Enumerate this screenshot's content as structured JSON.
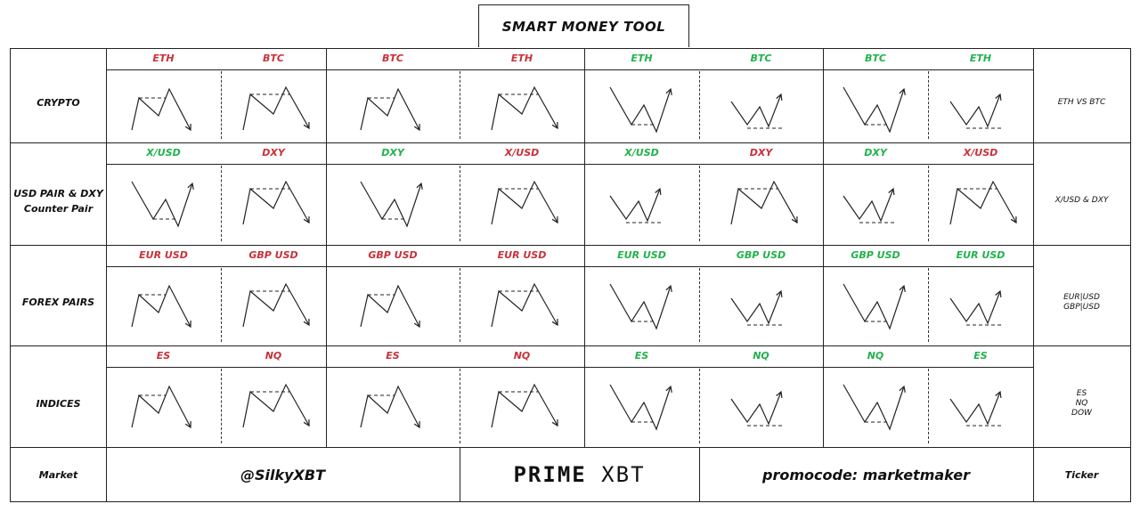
{
  "title": "SMART MONEY TOOL",
  "rows": [
    {
      "label_lines": [
        "CRYPTO"
      ],
      "ticker_lines": [
        "ETH VS BTC"
      ],
      "columns": [
        {
          "left": {
            "label": "ETH",
            "color": "red"
          },
          "right": {
            "label": "BTC",
            "color": "red"
          },
          "kind": "bearish",
          "variant": "a"
        },
        {
          "left": {
            "label": "BTC",
            "color": "red"
          },
          "right": {
            "label": "ETH",
            "color": "red"
          },
          "kind": "bearish",
          "variant": "a"
        },
        {
          "left": {
            "label": "ETH",
            "color": "green"
          },
          "right": {
            "label": "BTC",
            "color": "green"
          },
          "kind": "bullish",
          "variant": "a"
        },
        {
          "left": {
            "label": "BTC",
            "color": "green"
          },
          "right": {
            "label": "ETH",
            "color": "green"
          },
          "kind": "bullish",
          "variant": "a"
        }
      ]
    },
    {
      "label_lines": [
        "USD PAIR & DXY",
        "Counter Pair"
      ],
      "ticker_lines": [
        "X/USD & DXY"
      ],
      "columns": [
        {
          "left": {
            "label": "X/USD",
            "color": "green"
          },
          "right": {
            "label": "DXY",
            "color": "red"
          },
          "kind": "mixed_bull_bear",
          "variant": "a"
        },
        {
          "left": {
            "label": "DXY",
            "color": "green"
          },
          "right": {
            "label": "X/USD",
            "color": "red"
          },
          "kind": "mixed_bull_bear",
          "variant": "a"
        },
        {
          "left": {
            "label": "X/USD",
            "color": "green"
          },
          "right": {
            "label": "DXY",
            "color": "red"
          },
          "kind": "mixed_bull_bear",
          "variant": "b"
        },
        {
          "left": {
            "label": "DXY",
            "color": "green"
          },
          "right": {
            "label": "X/USD",
            "color": "red"
          },
          "kind": "mixed_bull_bear",
          "variant": "b"
        }
      ]
    },
    {
      "label_lines": [
        "FOREX PAIRS"
      ],
      "ticker_lines": [
        "EUR|USD",
        "GBP|USD"
      ],
      "columns": [
        {
          "left": {
            "label": "EUR USD",
            "color": "red"
          },
          "right": {
            "label": "GBP USD",
            "color": "red"
          },
          "kind": "bearish",
          "variant": "a"
        },
        {
          "left": {
            "label": "GBP USD",
            "color": "red"
          },
          "right": {
            "label": "EUR USD",
            "color": "red"
          },
          "kind": "bearish",
          "variant": "a"
        },
        {
          "left": {
            "label": "EUR USD",
            "color": "green"
          },
          "right": {
            "label": "GBP USD",
            "color": "green"
          },
          "kind": "bullish",
          "variant": "a"
        },
        {
          "left": {
            "label": "GBP USD",
            "color": "green"
          },
          "right": {
            "label": "EUR USD",
            "color": "green"
          },
          "kind": "bullish",
          "variant": "a"
        }
      ]
    },
    {
      "label_lines": [
        "INDICES"
      ],
      "ticker_lines": [
        "ES",
        "NQ",
        "DOW"
      ],
      "columns": [
        {
          "left": {
            "label": "ES",
            "color": "red"
          },
          "right": {
            "label": "NQ",
            "color": "red"
          },
          "kind": "bearish",
          "variant": "a"
        },
        {
          "left": {
            "label": "ES",
            "color": "red"
          },
          "right": {
            "label": "NQ",
            "color": "red"
          },
          "kind": "bearish",
          "variant": "a"
        },
        {
          "left": {
            "label": "ES",
            "color": "green"
          },
          "right": {
            "label": "NQ",
            "color": "green"
          },
          "kind": "bullish",
          "variant": "a"
        },
        {
          "left": {
            "label": "NQ",
            "color": "green"
          },
          "right": {
            "label": "ES",
            "color": "green"
          },
          "kind": "bullish",
          "variant": "a"
        }
      ]
    }
  ],
  "footer": {
    "market_label": "Market",
    "handle": "@SilkyXBT",
    "brand_bold": "PRIME",
    "brand_light": "XBT",
    "promo": "promocode: marketmaker",
    "ticker_label": "Ticker"
  },
  "colors": {
    "red": "#c8313a",
    "green": "#22b24c",
    "line": "#222222"
  }
}
